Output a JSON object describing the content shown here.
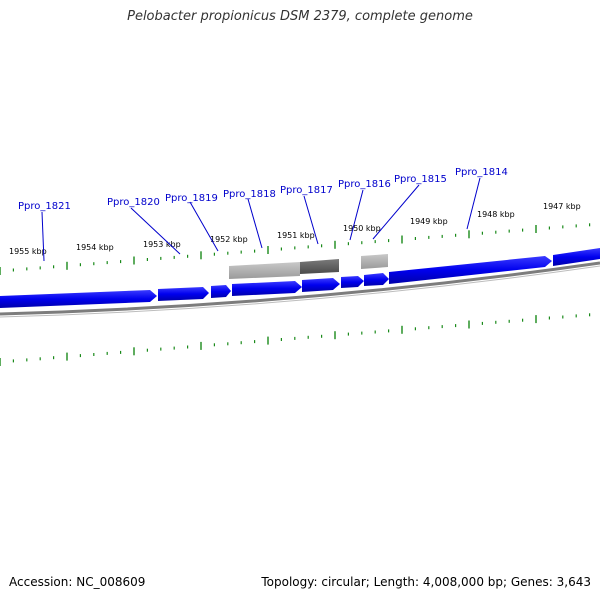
{
  "title": "Pelobacter propionicus DSM 2379, complete genome",
  "accession": "Accession: NC_008609",
  "summary": "Topology: circular; Length: 4,008,000 bp; Genes: 3,643",
  "colors": {
    "gene": "#0000ee",
    "ticks": "#1a8a1a",
    "backbone": "#7a7a7a",
    "gene_label": "#0000cc"
  },
  "kbp_labels": [
    "1955 kbp",
    "1954 kbp",
    "1953 kbp",
    "1952 kbp",
    "1951 kbp",
    "1950 kbp",
    "1949 kbp",
    "1948 kbp",
    "1947 kbp"
  ],
  "gene_labels": [
    "Ppro_1821",
    "Ppro_1820",
    "Ppro_1819",
    "Ppro_1818",
    "Ppro_1817",
    "Ppro_1816",
    "Ppro_1815",
    "Ppro_1814"
  ]
}
